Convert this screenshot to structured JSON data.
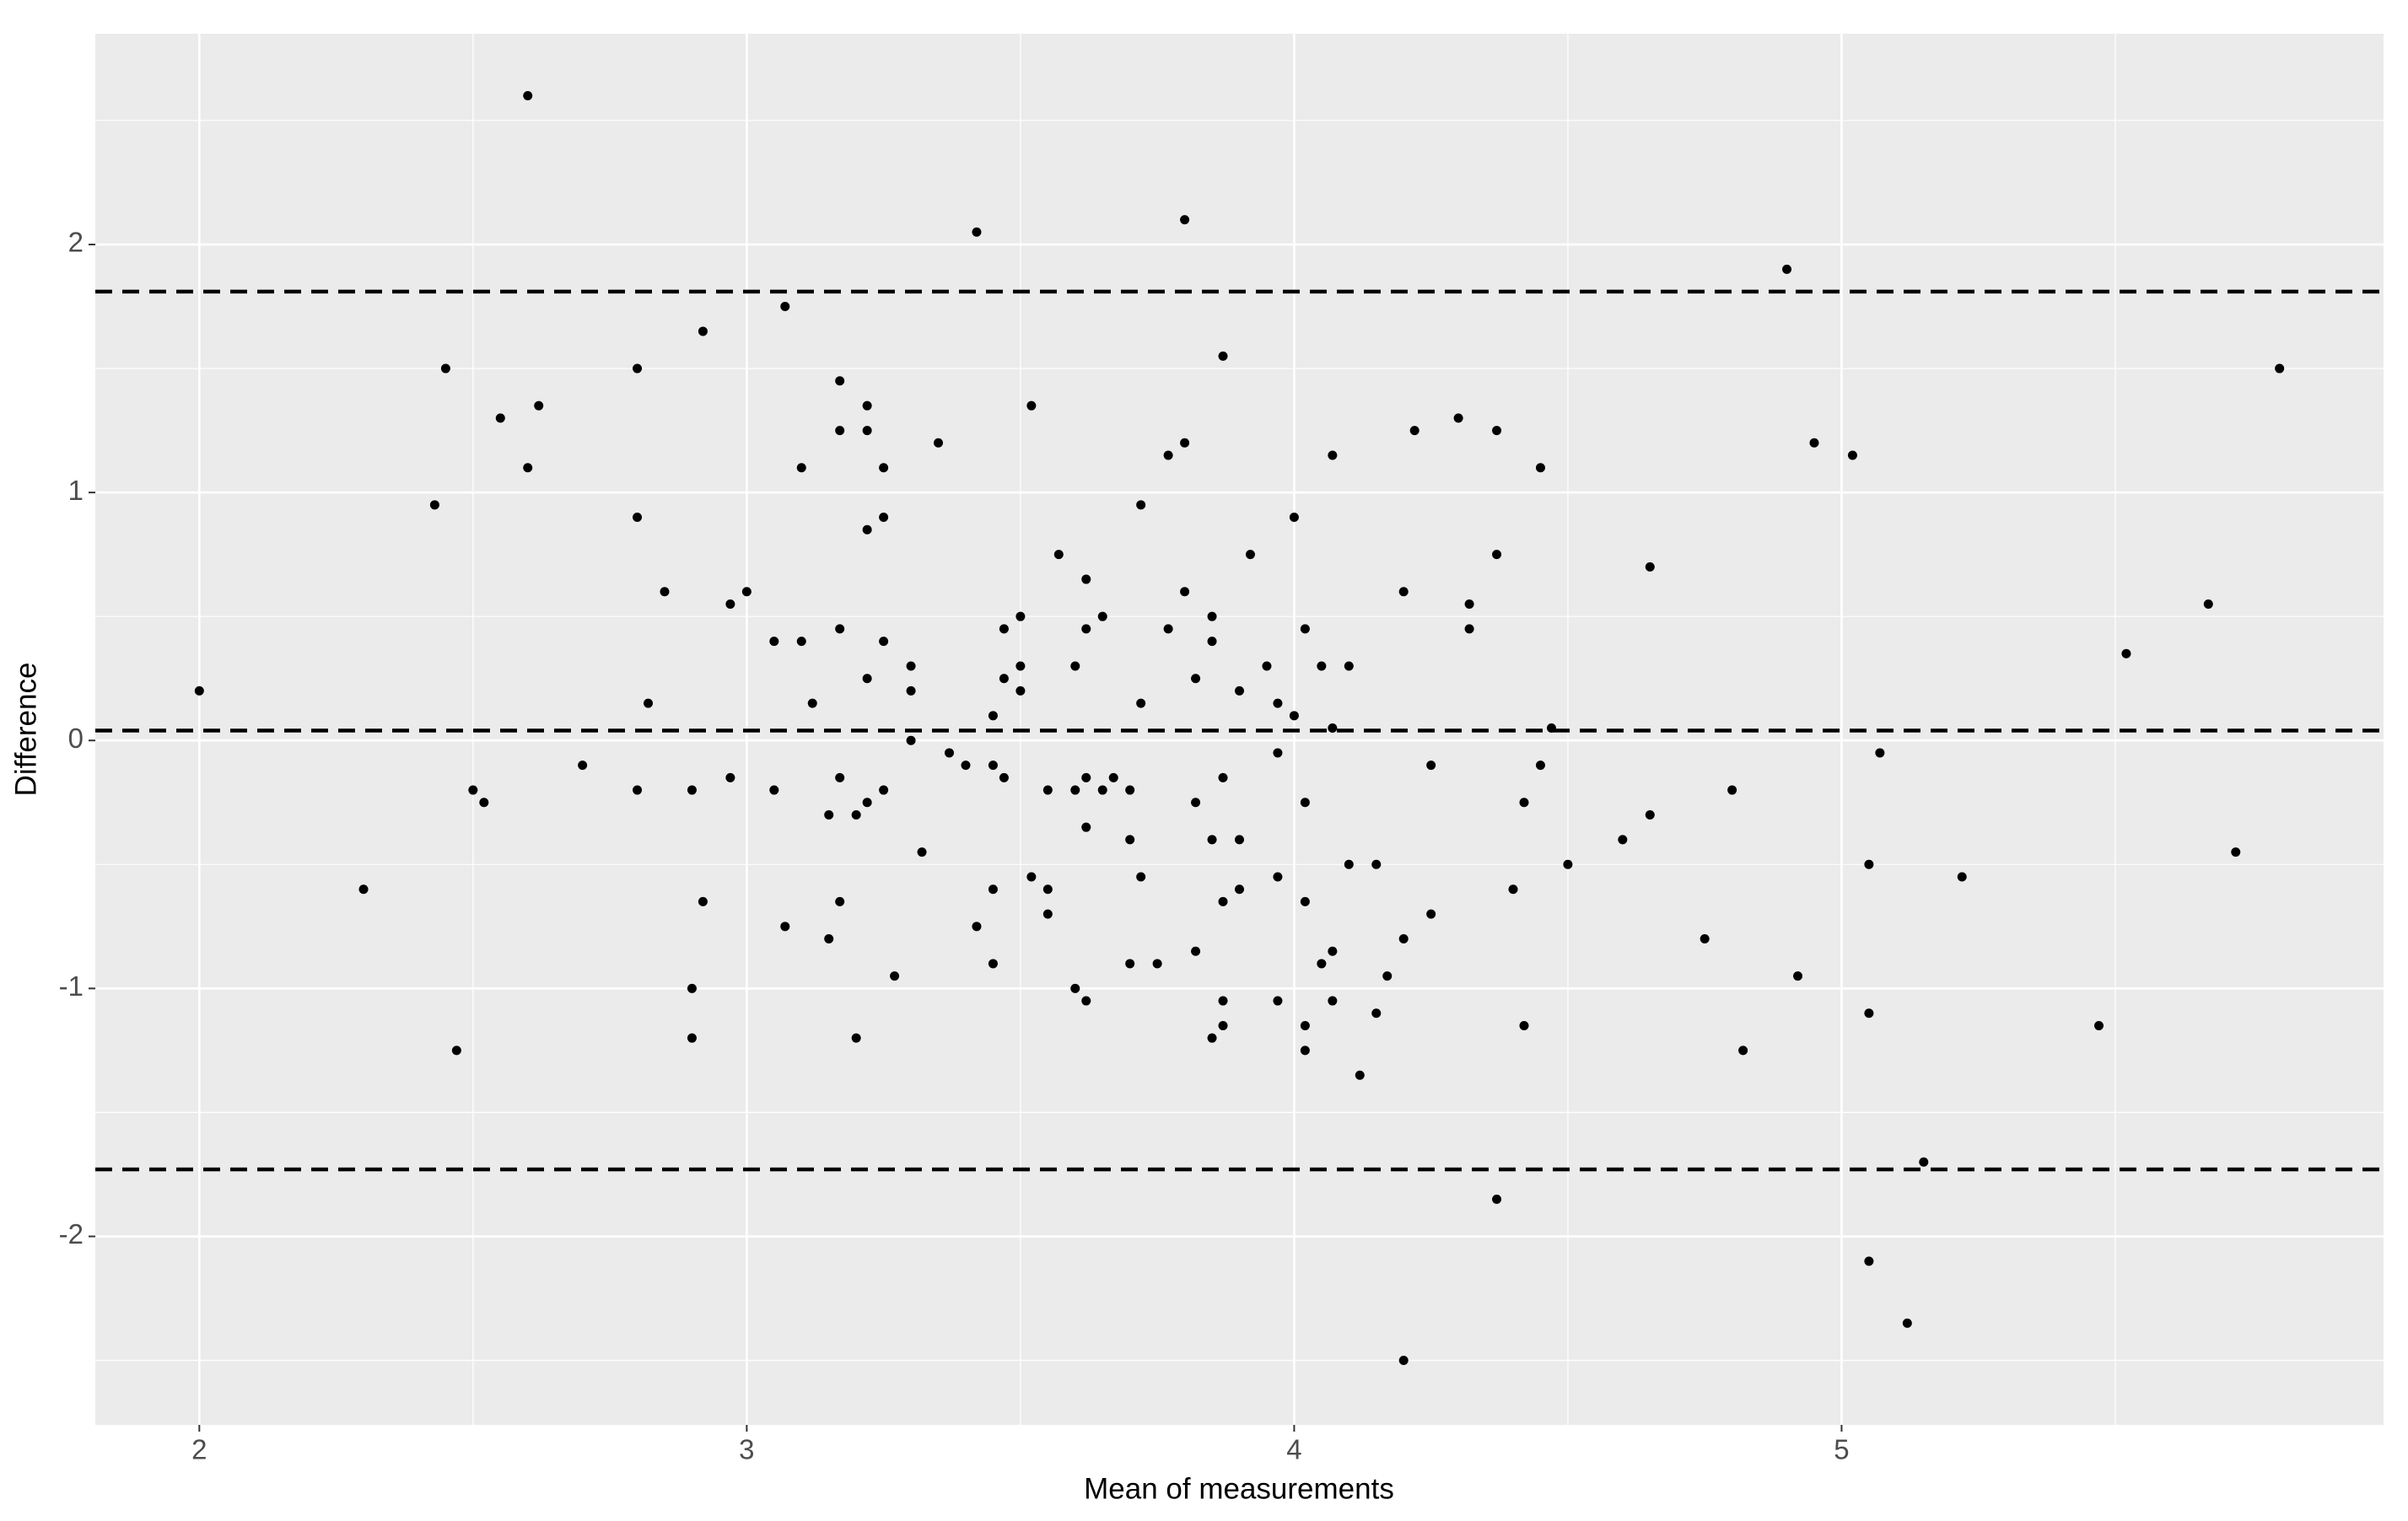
{
  "chart_data": {
    "type": "scatter",
    "x_label": "Mean of measurements",
    "y_label": "Difference",
    "x": [
      2.0,
      2.3,
      2.43,
      2.45,
      2.47,
      2.5,
      2.52,
      2.55,
      2.6,
      2.6,
      2.62,
      2.7,
      2.8,
      2.8,
      2.8,
      2.82,
      2.85,
      2.9,
      2.9,
      2.9,
      2.92,
      2.92,
      2.97,
      2.97,
      3.0,
      3.05,
      3.05,
      3.07,
      3.07,
      3.1,
      3.1,
      3.12,
      3.15,
      3.15,
      3.17,
      3.17,
      3.17,
      3.17,
      3.17,
      3.2,
      3.2,
      3.22,
      3.22,
      3.22,
      3.22,
      3.22,
      3.25,
      3.25,
      3.25,
      3.25,
      3.27,
      3.3,
      3.3,
      3.3,
      3.32,
      3.35,
      3.37,
      3.4,
      3.42,
      3.42,
      3.45,
      3.45,
      3.45,
      3.45,
      3.47,
      3.47,
      3.47,
      3.5,
      3.5,
      3.5,
      3.52,
      3.52,
      3.55,
      3.55,
      3.55,
      3.57,
      3.6,
      3.6,
      3.6,
      3.62,
      3.62,
      3.62,
      3.62,
      3.62,
      3.65,
      3.65,
      3.67,
      3.7,
      3.7,
      3.7,
      3.72,
      3.72,
      3.72,
      3.75,
      3.77,
      3.77,
      3.8,
      3.8,
      3.8,
      3.82,
      3.82,
      3.82,
      3.85,
      3.85,
      3.85,
      3.85,
      3.87,
      3.87,
      3.87,
      3.87,
      3.87,
      3.9,
      3.9,
      3.9,
      3.92,
      3.95,
      3.97,
      3.97,
      3.97,
      3.97,
      4.0,
      4.0,
      4.02,
      4.02,
      4.02,
      4.02,
      4.02,
      4.05,
      4.05,
      4.07,
      4.07,
      4.07,
      4.07,
      4.1,
      4.1,
      4.12,
      4.15,
      4.15,
      4.17,
      4.2,
      4.2,
      4.2,
      4.22,
      4.25,
      4.25,
      4.3,
      4.32,
      4.32,
      4.37,
      4.37,
      4.37,
      4.4,
      4.42,
      4.42,
      4.45,
      4.45,
      4.47,
      4.5,
      4.6,
      4.65,
      4.65,
      4.75,
      4.8,
      4.82,
      4.9,
      4.92,
      4.95,
      5.02,
      5.05,
      5.05,
      5.05,
      5.07,
      5.12,
      5.15,
      5.22,
      5.47,
      5.52,
      5.67,
      5.72,
      5.8
    ],
    "values": [
      0.2,
      -0.6,
      0.95,
      1.5,
      -1.25,
      -0.2,
      -0.25,
      1.3,
      2.6,
      1.1,
      1.35,
      -0.1,
      1.5,
      0.9,
      -0.2,
      0.15,
      0.6,
      -0.2,
      -1.0,
      -1.2,
      1.65,
      -0.65,
      0.55,
      -0.15,
      0.6,
      0.4,
      -0.2,
      1.75,
      -0.75,
      1.1,
      0.4,
      0.15,
      -0.3,
      -0.8,
      1.45,
      1.25,
      0.45,
      -0.15,
      -0.65,
      -0.3,
      -1.2,
      1.35,
      1.25,
      0.85,
      0.25,
      -0.25,
      1.1,
      0.9,
      0.4,
      -0.2,
      -0.95,
      0.3,
      0.2,
      0.0,
      -0.45,
      1.2,
      -0.05,
      -0.1,
      2.05,
      -0.75,
      0.1,
      -0.1,
      -0.6,
      -0.9,
      0.45,
      0.25,
      -0.15,
      0.5,
      0.3,
      0.2,
      1.35,
      -0.55,
      -0.2,
      -0.6,
      -0.7,
      0.75,
      0.3,
      -0.2,
      -1.0,
      0.65,
      0.45,
      -0.15,
      -0.35,
      -1.05,
      0.5,
      -0.2,
      -0.15,
      -0.2,
      -0.4,
      -0.9,
      0.95,
      0.15,
      -0.55,
      -0.9,
      1.15,
      0.45,
      2.1,
      1.2,
      0.6,
      0.25,
      -0.25,
      -0.85,
      0.5,
      0.4,
      -0.4,
      -1.2,
      1.55,
      -0.15,
      -0.65,
      -1.05,
      -1.15,
      0.2,
      -0.4,
      -0.6,
      0.75,
      0.3,
      0.15,
      -0.05,
      -0.55,
      -1.05,
      0.9,
      0.1,
      0.45,
      -0.25,
      -0.65,
      -1.15,
      -1.25,
      0.3,
      -0.9,
      1.15,
      0.05,
      -0.85,
      -1.05,
      0.3,
      -0.5,
      -1.35,
      -0.5,
      -1.1,
      -0.95,
      0.6,
      -0.8,
      -2.5,
      1.25,
      -0.1,
      -0.7,
      1.3,
      0.55,
      0.45,
      1.25,
      0.75,
      -1.85,
      -0.6,
      -0.25,
      -1.15,
      1.1,
      -0.1,
      0.05,
      -0.5,
      -0.4,
      0.7,
      -0.3,
      -0.8,
      -0.2,
      -1.25,
      1.9,
      -0.95,
      1.2,
      1.15,
      -0.5,
      -1.1,
      -2.1,
      -0.05,
      -2.35,
      -1.7,
      -0.55,
      -1.15,
      0.35,
      0.55,
      -0.45,
      1.5
    ],
    "color": "#000000",
    "hlines": [
      1.81,
      0.04,
      -1.73
    ],
    "hline_style": "dashed",
    "xlim": [
      1.81,
      5.99
    ],
    "ylim": [
      -2.76,
      2.85
    ],
    "xticks": [
      2,
      3,
      4,
      5
    ],
    "yticks": [
      -2,
      -1,
      0,
      1,
      2
    ],
    "minor_xticks": [
      2.5,
      3.5,
      4.5,
      5.5
    ],
    "minor_yticks": [
      -2.5,
      -1.5,
      -0.5,
      0.5,
      1.5,
      2.5
    ],
    "grid": true,
    "panel_color": "#ebebeb"
  }
}
